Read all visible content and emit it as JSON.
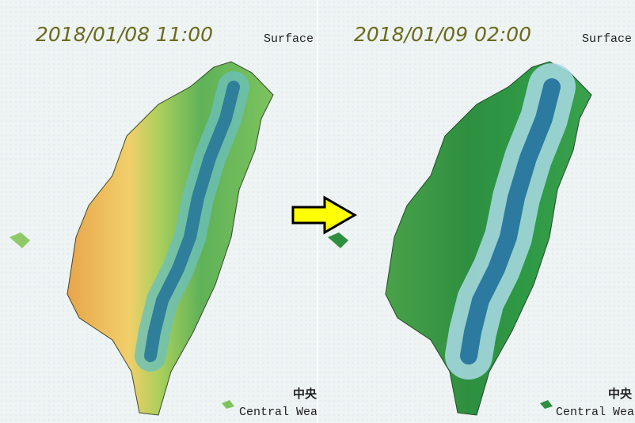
{
  "panels": [
    {
      "timestamp": "2018/01/08 11:00",
      "label": "Surface",
      "credit_zh": "中央",
      "credit_en": "Central Weat"
    },
    {
      "timestamp": "2018/01/09 02:00",
      "label": "Surface",
      "credit_zh": "中央",
      "credit_en": "Central Weat"
    }
  ]
}
